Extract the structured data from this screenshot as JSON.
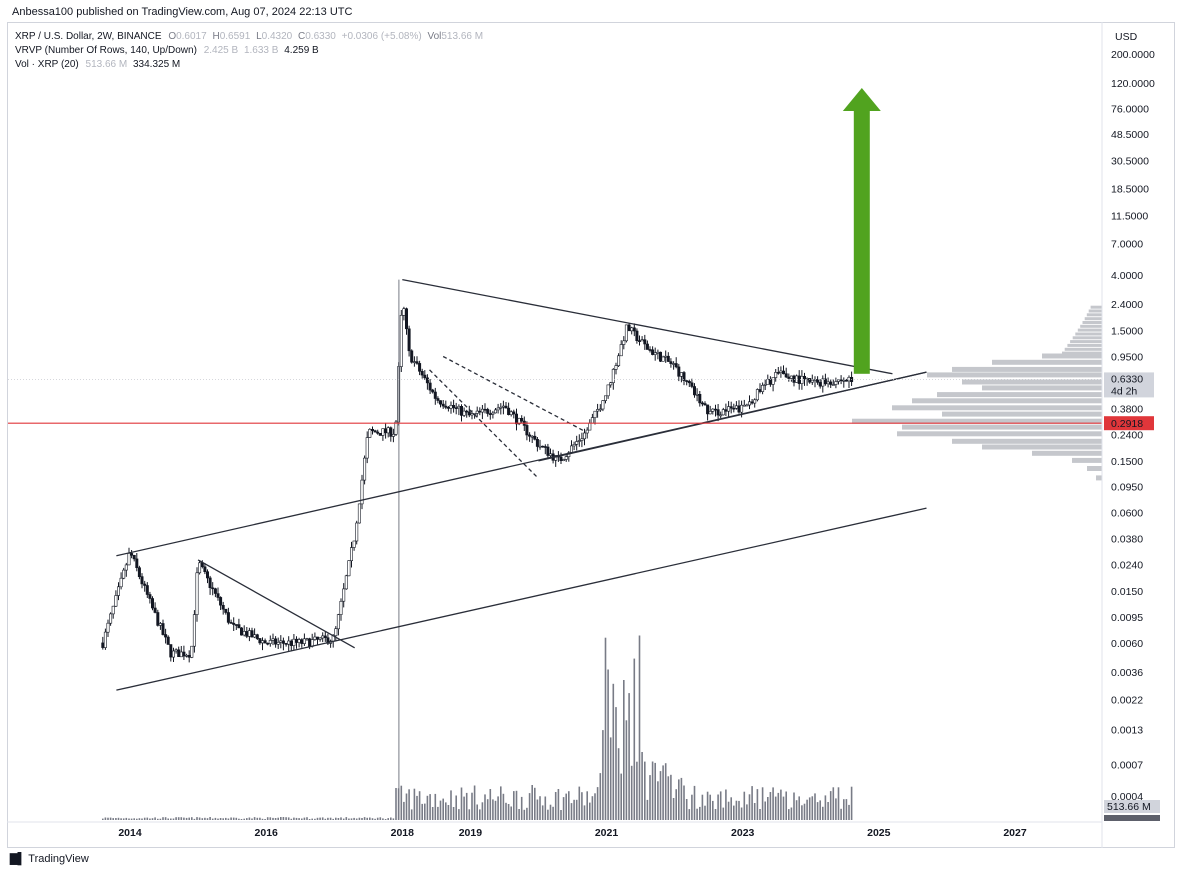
{
  "header": {
    "publisher": "Anbessa100 published on TradingView.com, Aug 07, 2024 22:13 UTC"
  },
  "legend": {
    "symbol": "XRP / U.S. Dollar, 2W, BINANCE",
    "o_label": "O",
    "o_value": "0.6017",
    "h_label": "H",
    "h_value": "0.6591",
    "l_label": "L",
    "l_value": "0.4320",
    "c_label": "C",
    "c_value": "0.6330",
    "change": "+0.0306 (+5.08%)",
    "vol_label": "Vol",
    "vol_value": "513.66 M",
    "vrvp_label": "VRVP (Number Of Rows, 140, Up/Down)",
    "vrvp_v1": "2.425 B",
    "vrvp_v2": "1.633 B",
    "vrvp_v3": "4.259 B",
    "volxrp_label": "Vol · XRP (20)",
    "volxrp_v1": "513.66 M",
    "volxrp_v2": "334.325 M"
  },
  "footer": {
    "brand": "TradingView"
  },
  "chart_data": {
    "type": "candlestick",
    "title": "XRP / U.S. Dollar, 2W, BINANCE",
    "currency": "USD",
    "yscale": "log",
    "price_ticks": [
      "200.0000",
      "120.0000",
      "76.0000",
      "48.5000",
      "30.5000",
      "18.5000",
      "11.5000",
      "7.0000",
      "4.0000",
      "2.4000",
      "1.5000",
      "0.9500",
      "0.6330",
      "0.3800",
      "0.2400",
      "0.1500",
      "0.0950",
      "0.0600",
      "0.0380",
      "0.0240",
      "0.0150",
      "0.0095",
      "0.0060",
      "0.0036",
      "0.0022",
      "0.0013",
      "0.0007",
      "0.0004"
    ],
    "year_ticks": [
      "2014",
      "2016",
      "2018",
      "2019",
      "2021",
      "2023",
      "2025",
      "2027"
    ],
    "current_price": "0.6330",
    "countdown": "4d 2h",
    "marked_level": "0.2918",
    "volume_label": "513.66 M",
    "price_series_approx": [
      {
        "t": "2013.6",
        "p": 0.006
      },
      {
        "t": "2013.9",
        "p": 0.02
      },
      {
        "t": "2014.0",
        "p": 0.03
      },
      {
        "t": "2014.3",
        "p": 0.012
      },
      {
        "t": "2014.6",
        "p": 0.005
      },
      {
        "t": "2014.9",
        "p": 0.005
      },
      {
        "t": "2015.0",
        "p": 0.025
      },
      {
        "t": "2015.5",
        "p": 0.008
      },
      {
        "t": "2016.0",
        "p": 0.006
      },
      {
        "t": "2016.5",
        "p": 0.006
      },
      {
        "t": "2017.0",
        "p": 0.0065
      },
      {
        "t": "2017.3",
        "p": 0.04
      },
      {
        "t": "2017.5",
        "p": 0.25
      },
      {
        "t": "2017.9",
        "p": 0.25
      },
      {
        "t": "2018.0",
        "p": 2.7
      },
      {
        "t": "2018.1",
        "p": 1.0
      },
      {
        "t": "2018.5",
        "p": 0.45
      },
      {
        "t": "2019.0",
        "p": 0.33
      },
      {
        "t": "2019.5",
        "p": 0.4
      },
      {
        "t": "2020.0",
        "p": 0.2
      },
      {
        "t": "2020.3",
        "p": 0.15
      },
      {
        "t": "2020.7",
        "p": 0.25
      },
      {
        "t": "2021.0",
        "p": 0.5
      },
      {
        "t": "2021.3",
        "p": 1.6
      },
      {
        "t": "2021.6",
        "p": 1.1
      },
      {
        "t": "2022.0",
        "p": 0.8
      },
      {
        "t": "2022.5",
        "p": 0.35
      },
      {
        "t": "2023.0",
        "p": 0.38
      },
      {
        "t": "2023.5",
        "p": 0.7
      },
      {
        "t": "2024.0",
        "p": 0.6
      },
      {
        "t": "2024.6",
        "p": 0.633
      }
    ],
    "annotations": {
      "triangle_upper": {
        "from": {
          "t": "2018.0",
          "p": 3.7
        },
        "to": {
          "t": "2025.2",
          "p": 0.7
        }
      },
      "triangle_lower": {
        "from": {
          "t": "2020.0",
          "p": 0.15
        },
        "to": {
          "t": "2025.7",
          "p": 0.72
        }
      },
      "channel_top": {
        "from": {
          "t": "2013.8",
          "p": 0.028
        },
        "to": {
          "t": "2025.7",
          "p": 0.72
        }
      },
      "channel_bottom": {
        "from": {
          "t": "2013.8",
          "p": 0.0026
        },
        "to": {
          "t": "2025.7",
          "p": 0.065
        }
      },
      "arrow_target_price": "200+"
    }
  },
  "colors": {
    "accent_green": "#51a31f",
    "level_red": "#e0363a",
    "candle": "#131722",
    "volume": "#9598a1",
    "profile": "#c5c7cc",
    "label_bg": "#d1d4dc"
  }
}
